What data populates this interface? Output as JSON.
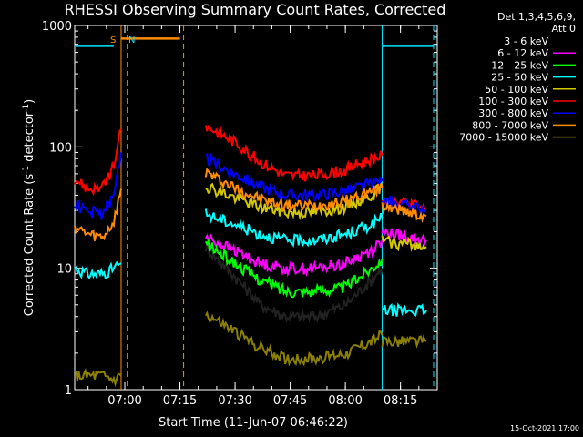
{
  "chart_data": {
    "type": "line",
    "title": "RHESSI Observing Summary Count Rates, Corrected",
    "xlabel": "Start Time (11-Jun-07 06:46:22)",
    "ylabel_main": "Corrected Count Rate (s",
    "ylabel_sup1": "-1",
    "ylabel_mid": " detector",
    "ylabel_sup2": "-1",
    "ylabel_end": ")",
    "yscale": "log",
    "ylim": [
      1,
      1000
    ],
    "xlim": [
      "06:46:22",
      "08:25:00"
    ],
    "x_ticks": [
      "07:00",
      "07:15",
      "07:30",
      "07:45",
      "08:00",
      "08:15"
    ],
    "y_ticks": [
      "1",
      "10",
      "100",
      "1000"
    ],
    "legend_header": [
      "Det 1,3,4,5,6,9,",
      "Att 0"
    ],
    "legend_position": "right",
    "markers": [
      {
        "label": "S",
        "color": "#ff8c00",
        "time": "06:59:00"
      },
      {
        "label": "N",
        "color": "#00e5ff",
        "time": "07:00:00"
      }
    ],
    "timestamp": "15-Oct-2021 17:00",
    "series": [
      {
        "name": "3 - 6 keV",
        "color": "#000000"
      },
      {
        "name": "6 - 12 keV",
        "color": "#ff00ff"
      },
      {
        "name": "12 - 25 keV",
        "color": "#00ff00"
      },
      {
        "name": "25 - 50 keV",
        "color": "#00ffff"
      },
      {
        "name": "50 - 100 keV",
        "color": "#d4c800"
      },
      {
        "name": "100 - 300 keV",
        "color": "#ff0000"
      },
      {
        "name": "300 - 800 keV",
        "color": "#0000ff"
      },
      {
        "name": "800 - 7000 keV",
        "color": "#ff8c00"
      },
      {
        "name": "7000 - 15000 keV",
        "color": "#8b8000"
      }
    ],
    "segments": [
      {
        "name": "seg1",
        "x": [
          "06:46:22",
          "06:50:00",
          "06:54:00",
          "06:57:00",
          "06:59:00"
        ],
        "values": {
          "6 - 12 keV": null,
          "12 - 25 keV": null,
          "25 - 50 keV": [
            10,
            9,
            9,
            10,
            11
          ],
          "50 - 100 keV": null,
          "100 - 300 keV": [
            55,
            45,
            46,
            70,
            140
          ],
          "300 - 800 keV": [
            34,
            29,
            29,
            38,
            90
          ],
          "800 - 7000 keV": [
            22,
            19,
            18,
            24,
            45
          ],
          "7000 - 15000 keV": [
            1.3,
            1.3,
            1.3,
            1.2,
            1.3
          ]
        }
      },
      {
        "name": "seg2",
        "x": [
          "07:22:00",
          "07:30:00",
          "07:37:00",
          "07:44:00",
          "07:52:00",
          "08:00:00",
          "08:07:00",
          "08:10:00"
        ],
        "values": {
          "3 - 6 keV": [
            15,
            8.5,
            5,
            4,
            4,
            5,
            8,
            10
          ],
          "6 - 12 keV": [
            18,
            14,
            11,
            10,
            10,
            11,
            14,
            17
          ],
          "12 - 25 keV": [
            16,
            11,
            8,
            6.5,
            6.5,
            7,
            10,
            12
          ],
          "25 - 50 keV": [
            28,
            23,
            19,
            17,
            17,
            19,
            23,
            26
          ],
          "50 - 100 keV": [
            48,
            38,
            32,
            29,
            29,
            32,
            40,
            47
          ],
          "100 - 300 keV": [
            150,
            110,
            75,
            58,
            58,
            65,
            80,
            85
          ],
          "300 - 800 keV": [
            80,
            60,
            47,
            40,
            40,
            43,
            50,
            52
          ],
          "800 - 7000 keV": [
            62,
            46,
            37,
            33,
            33,
            36,
            43,
            46
          ],
          "7000 - 15000 keV": [
            4.2,
            3,
            2.2,
            1.8,
            1.8,
            2.0,
            2.5,
            2.8
          ]
        }
      },
      {
        "name": "seg3",
        "x": [
          "08:10:00",
          "08:14:00",
          "08:18:00",
          "08:22:00"
        ],
        "values": {
          "6 - 12 keV": [
            20,
            19,
            18,
            17
          ],
          "25 - 50 keV": [
            4.5,
            4.5,
            4.5,
            4.5
          ],
          "50 - 100 keV": [
            17,
            16,
            16,
            15
          ],
          "100 - 300 keV": [
            38,
            36,
            34,
            30
          ],
          "300 - 800 keV": [
            36,
            34,
            32,
            30
          ],
          "800 - 7000 keV": [
            33,
            31,
            29,
            27
          ],
          "7000 - 15000 keV": [
            2.5,
            2.5,
            2.5,
            2.5
          ]
        }
      }
    ]
  }
}
